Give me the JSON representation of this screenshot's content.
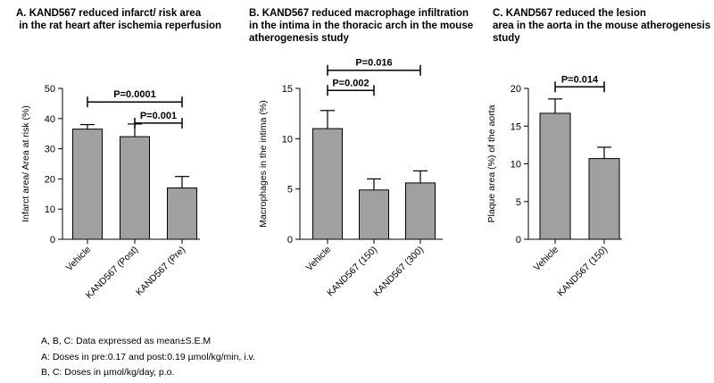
{
  "colors": {
    "bar": "#a0a0a0",
    "stroke": "#000000"
  },
  "chart_data": [
    {
      "type": "bar",
      "panel": "A",
      "title": "A. KAND567 reduced infarct/ risk area\n in the rat heart after ischemia reperfusion",
      "ylabel": "Infarct area/ Area at risk (%)",
      "xlabel": "",
      "ylim": [
        0,
        50
      ],
      "yticks": [
        0,
        10,
        20,
        30,
        40,
        50
      ],
      "categories": [
        "Vehicle",
        "KAND567 (Post)",
        "KAND567 (Pre)"
      ],
      "values": [
        36.5,
        34.0,
        17.0
      ],
      "errors": [
        1.5,
        4.2,
        3.8
      ],
      "significance": [
        {
          "label": "P=0.0001",
          "from": 0,
          "to": 2,
          "y": 45.5
        },
        {
          "label": "P=0.001",
          "from": 1,
          "to": 2,
          "y": 38.5
        }
      ]
    },
    {
      "type": "bar",
      "panel": "B",
      "title": "B. KAND567 reduced macrophage infiltration\nin the intima in the thoracic arch in the mouse\natherogenesis study",
      "ylabel": "Macrophages in the intima (%)",
      "xlabel": "",
      "ylim": [
        0,
        15
      ],
      "yticks": [
        0,
        5,
        10,
        15
      ],
      "categories": [
        "Vehicle",
        "KAND567 (150)",
        "KAND567 (300)"
      ],
      "values": [
        11.0,
        4.9,
        5.6
      ],
      "errors": [
        1.8,
        1.1,
        1.2
      ],
      "significance": [
        {
          "label": "P=0.016",
          "from": 0,
          "to": 2,
          "y": 16.8
        },
        {
          "label": "P=0.002",
          "from": 0,
          "to": 1,
          "y": 14.8
        }
      ]
    },
    {
      "type": "bar",
      "panel": "C",
      "title": "C. KAND567 reduced the lesion\narea in the aorta in the mouse atherogenesis\nstudy",
      "ylabel": "Plaque area (%) of the aorta",
      "xlabel": "",
      "ylim": [
        0,
        20
      ],
      "yticks": [
        0,
        5,
        10,
        15,
        20
      ],
      "categories": [
        "Vehicle",
        "KAND567 (150)"
      ],
      "values": [
        16.7,
        10.7
      ],
      "errors": [
        1.9,
        1.5
      ],
      "significance": [
        {
          "label": "P=0.014",
          "from": 0,
          "to": 1,
          "y": 20.2
        }
      ]
    }
  ],
  "footnotes": [
    "A, B, C: Data expressed as mean±S.E.M",
    "A: Doses in pre:0.17 and post:0.19 µmol/kg/min, i.v.",
    "B, C: Doses in µmol/kg/day, p.o."
  ]
}
